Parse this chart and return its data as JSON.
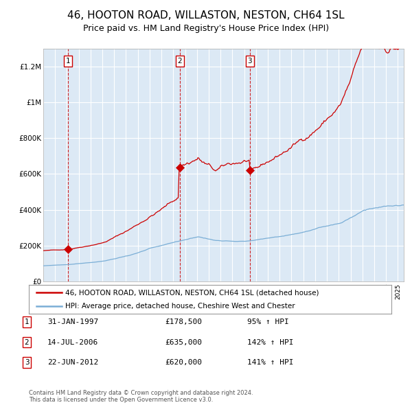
{
  "title": "46, HOOTON ROAD, WILLASTON, NESTON, CH64 1SL",
  "subtitle": "Price paid vs. HM Land Registry's House Price Index (HPI)",
  "title_fontsize": 11,
  "subtitle_fontsize": 9,
  "bg_color": "#dce9f5",
  "red_line_color": "#cc0000",
  "blue_line_color": "#7aaed6",
  "grid_color": "#ffffff",
  "sale_labels": [
    "1",
    "2",
    "3"
  ],
  "sale_dates_yr": [
    1997.08,
    2006.54,
    2012.47
  ],
  "sale_prices": [
    178500,
    635000,
    620000
  ],
  "legend_entries": [
    "46, HOOTON ROAD, WILLASTON, NESTON, CH64 1SL (detached house)",
    "HPI: Average price, detached house, Cheshire West and Chester"
  ],
  "table_rows": [
    {
      "num": "1",
      "date": "31-JAN-1997",
      "price": "£178,500",
      "hpi": "95% ↑ HPI"
    },
    {
      "num": "2",
      "date": "14-JUL-2006",
      "price": "£635,000",
      "hpi": "142% ↑ HPI"
    },
    {
      "num": "3",
      "date": "22-JUN-2012",
      "price": "£620,000",
      "hpi": "141% ↑ HPI"
    }
  ],
  "footer": "Contains HM Land Registry data © Crown copyright and database right 2024.\nThis data is licensed under the Open Government Licence v3.0.",
  "ylim": [
    0,
    1300000
  ],
  "yticks": [
    0,
    200000,
    400000,
    600000,
    800000,
    1000000,
    1200000
  ],
  "ytick_labels": [
    "£0",
    "£200K",
    "£400K",
    "£600K",
    "£800K",
    "£1M",
    "£1.2M"
  ],
  "xlim_start": 1995.0,
  "xlim_end": 2025.5
}
